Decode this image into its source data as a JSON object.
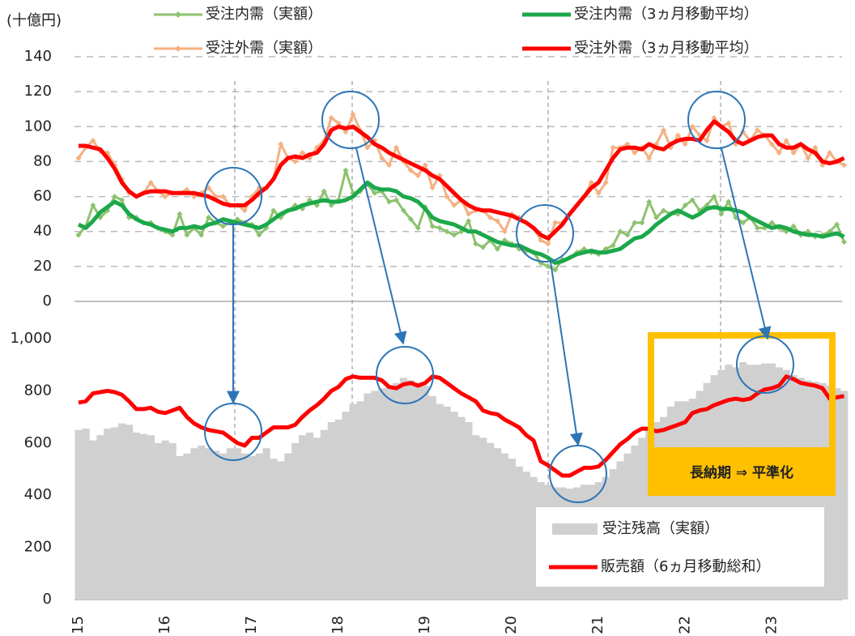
{
  "chart_data": [
    {
      "type": "line",
      "y_label": "(十億円)",
      "ylim": [
        0,
        140
      ],
      "yticks": [
        0,
        20,
        40,
        60,
        80,
        100,
        120,
        140
      ],
      "grid": true,
      "series": [
        {
          "name": "受注内需（実額）",
          "color": "#8dc26f",
          "markers": true,
          "width": 3,
          "values": [
            38,
            43,
            55,
            48,
            52,
            60,
            58,
            48,
            48,
            45,
            45,
            42,
            40,
            38,
            50,
            38,
            42,
            38,
            48,
            45,
            43,
            45,
            47,
            45,
            44,
            38,
            42,
            52,
            48,
            52,
            55,
            53,
            58,
            55,
            63,
            55,
            58,
            75,
            62,
            63,
            67,
            62,
            63,
            57,
            58,
            52,
            47,
            42,
            54,
            43,
            42,
            40,
            38,
            40,
            46,
            33,
            31,
            35,
            30,
            35,
            33,
            30,
            29,
            28,
            22,
            20,
            18,
            24,
            25,
            28,
            30,
            28,
            27,
            30,
            32,
            40,
            38,
            45,
            45,
            57,
            48,
            52,
            50,
            50,
            55,
            58,
            52,
            55,
            60,
            50,
            57,
            48,
            45,
            48,
            42,
            42,
            45,
            42,
            40,
            43,
            38,
            40,
            37,
            38,
            40,
            44,
            34
          ]
        },
        {
          "name": "受注外需（実額）",
          "color": "#f4b183",
          "markers": true,
          "width": 3,
          "values": [
            82,
            88,
            92,
            86,
            85,
            78,
            70,
            62,
            60,
            62,
            68,
            63,
            60,
            62,
            62,
            64,
            60,
            62,
            65,
            60,
            60,
            55,
            55,
            52,
            60,
            65,
            65,
            70,
            90,
            82,
            80,
            85,
            82,
            88,
            92,
            105,
            102,
            97,
            107,
            98,
            88,
            92,
            82,
            78,
            88,
            80,
            75,
            72,
            78,
            65,
            72,
            60,
            55,
            58,
            50,
            52,
            52,
            48,
            46,
            40,
            50,
            48,
            45,
            42,
            35,
            33,
            45,
            45,
            50,
            55,
            60,
            68,
            62,
            68,
            88,
            88,
            90,
            85,
            88,
            82,
            90,
            98,
            88,
            95,
            90,
            100,
            95,
            92,
            105,
            100,
            102,
            90,
            97,
            92,
            98,
            95,
            90,
            85,
            92,
            85,
            90,
            82,
            88,
            78,
            85,
            80,
            78
          ]
        },
        {
          "name": "受注内需（3ヵ月移動平均）",
          "color": "#1ca84a",
          "markers": false,
          "width": 5,
          "values": [
            44,
            42,
            46,
            51,
            54,
            57,
            55,
            50,
            47,
            45,
            44,
            42,
            41,
            40,
            42,
            42,
            43,
            42,
            44,
            45,
            47,
            46,
            45,
            44,
            43,
            42,
            44,
            47,
            50,
            52,
            53,
            55,
            56,
            57,
            58,
            57,
            57,
            58,
            60,
            64,
            68,
            65,
            64,
            64,
            63,
            60,
            59,
            57,
            53,
            48,
            46,
            45,
            44,
            42,
            40,
            40,
            38,
            36,
            34,
            33,
            32,
            32,
            30,
            28,
            27,
            25,
            22,
            23,
            25,
            27,
            28,
            29,
            28,
            28,
            29,
            30,
            33,
            36,
            37,
            40,
            44,
            47,
            50,
            52,
            50,
            48,
            50,
            53,
            54,
            53,
            53,
            52,
            51,
            48,
            46,
            44,
            42,
            43,
            42,
            40,
            39,
            38,
            38,
            37,
            38,
            39,
            37
          ]
        },
        {
          "name": "受注外需（3ヵ月移動平均）",
          "color": "#ff0000",
          "markers": false,
          "width": 5,
          "values": [
            89,
            89,
            88,
            87,
            82,
            76,
            68,
            63,
            60,
            62,
            63,
            63,
            63,
            62,
            62,
            62,
            62,
            61,
            60,
            58,
            56,
            55,
            55,
            55,
            58,
            62,
            65,
            70,
            78,
            82,
            83,
            82,
            84,
            85,
            90,
            98,
            100,
            99,
            100,
            97,
            94,
            90,
            88,
            85,
            83,
            81,
            79,
            77,
            75,
            72,
            70,
            66,
            62,
            58,
            55,
            53,
            52,
            52,
            51,
            50,
            49,
            47,
            45,
            42,
            38,
            36,
            40,
            44,
            50,
            55,
            60,
            65,
            68,
            75,
            82,
            87,
            88,
            88,
            87,
            90,
            88,
            87,
            90,
            92,
            93,
            93,
            92,
            98,
            103,
            100,
            97,
            92,
            90,
            92,
            94,
            95,
            95,
            90,
            88,
            88,
            90,
            87,
            85,
            80,
            79,
            80,
            82
          ]
        }
      ]
    },
    {
      "type": "combo",
      "categories": [
        "15",
        null,
        null,
        null,
        null,
        null,
        null,
        null,
        null,
        null,
        null,
        null,
        "16",
        null,
        null,
        null,
        null,
        null,
        null,
        null,
        null,
        null,
        null,
        null,
        "17",
        null,
        null,
        null,
        null,
        null,
        null,
        null,
        null,
        null,
        null,
        null,
        "18",
        null,
        null,
        null,
        null,
        null,
        null,
        null,
        null,
        null,
        null,
        null,
        "19",
        null,
        null,
        null,
        null,
        null,
        null,
        null,
        null,
        null,
        null,
        null,
        "20",
        null,
        null,
        null,
        null,
        null,
        null,
        null,
        null,
        null,
        null,
        null,
        "21",
        null,
        null,
        null,
        null,
        null,
        null,
        null,
        null,
        null,
        null,
        null,
        "22",
        null,
        null,
        null,
        null,
        null,
        null,
        null,
        null,
        null,
        null,
        null,
        "23",
        null,
        null,
        null,
        null,
        null,
        null,
        null,
        null,
        null,
        null
      ],
      "ylim": [
        0,
        1000
      ],
      "yticks": [
        0,
        200,
        400,
        600,
        800,
        {
          "value": 1000,
          "label": "1,000"
        }
      ],
      "annotation": "長納期 ⇒ 平準化",
      "series": [
        {
          "name": "受注残高（実額）",
          "type": "bar",
          "color": "#d0d0d0",
          "values": [
            650,
            655,
            610,
            630,
            655,
            660,
            675,
            670,
            640,
            635,
            630,
            600,
            610,
            600,
            550,
            560,
            580,
            590,
            580,
            570,
            560,
            580,
            580,
            560,
            550,
            560,
            580,
            540,
            530,
            560,
            600,
            630,
            640,
            620,
            650,
            680,
            690,
            720,
            750,
            760,
            790,
            800,
            810,
            820,
            830,
            850,
            840,
            830,
            820,
            780,
            750,
            740,
            720,
            700,
            680,
            630,
            620,
            600,
            580,
            560,
            540,
            510,
            490,
            470,
            450,
            440,
            430,
            430,
            425,
            430,
            440,
            440,
            450,
            470,
            500,
            530,
            560,
            590,
            620,
            650,
            680,
            700,
            740,
            760,
            760,
            770,
            800,
            830,
            860,
            880,
            900,
            890,
            910,
            900,
            900,
            905,
            905,
            890,
            880,
            860,
            850,
            840,
            835,
            830,
            820,
            810,
            800
          ]
        },
        {
          "name": "販売額（6ヵ月移動総和）",
          "type": "line",
          "color": "#ff0000",
          "values": [
            755,
            760,
            790,
            795,
            800,
            795,
            785,
            760,
            730,
            730,
            735,
            720,
            715,
            725,
            735,
            700,
            675,
            660,
            650,
            645,
            640,
            620,
            600,
            590,
            620,
            620,
            640,
            660,
            660,
            660,
            670,
            700,
            725,
            745,
            770,
            800,
            815,
            845,
            855,
            850,
            850,
            850,
            840,
            815,
            810,
            825,
            830,
            820,
            830,
            855,
            850,
            830,
            810,
            790,
            775,
            760,
            725,
            715,
            710,
            690,
            675,
            660,
            630,
            610,
            530,
            515,
            495,
            475,
            475,
            490,
            505,
            505,
            510,
            535,
            565,
            595,
            615,
            640,
            655,
            655,
            645,
            650,
            660,
            670,
            680,
            715,
            725,
            730,
            745,
            755,
            765,
            770,
            765,
            770,
            790,
            805,
            810,
            820,
            855,
            845,
            830,
            825,
            820,
            810,
            770,
            775,
            780
          ]
        }
      ]
    }
  ]
}
